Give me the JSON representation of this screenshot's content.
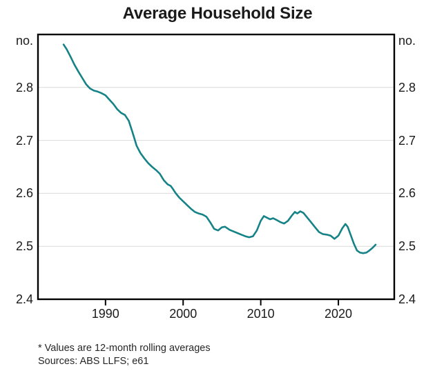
{
  "chart_data": {
    "type": "line",
    "title": "Average Household Size",
    "unit_label": "no.",
    "footnote": "* Values are 12-month rolling averages",
    "sources": "Sources: ABS LLFS; e61",
    "xlim": [
      1981.3,
      2027.2
    ],
    "ylim": [
      2.4,
      2.9
    ],
    "x_ticks": [
      1990,
      2000,
      2010,
      2020
    ],
    "y_ticks": [
      2.4,
      2.5,
      2.6,
      2.7,
      2.8
    ],
    "y_gridlines": [
      2.5,
      2.6,
      2.7,
      2.8
    ],
    "grid_on": true,
    "legend": "none",
    "line_color": "#148286",
    "grid_color": "#d9d9d9",
    "axis_color": "#000000",
    "text_color": "#1a1a1a",
    "series": [
      {
        "name": "Average household size",
        "points": [
          [
            1984.6,
            2.881
          ],
          [
            1985,
            2.872
          ],
          [
            1985.5,
            2.858
          ],
          [
            1986,
            2.843
          ],
          [
            1986.5,
            2.83
          ],
          [
            1987,
            2.818
          ],
          [
            1987.5,
            2.806
          ],
          [
            1988,
            2.798
          ],
          [
            1988.5,
            2.794
          ],
          [
            1989,
            2.792
          ],
          [
            1989.5,
            2.789
          ],
          [
            1990,
            2.785
          ],
          [
            1990.5,
            2.777
          ],
          [
            1991,
            2.769
          ],
          [
            1991.5,
            2.759
          ],
          [
            1992,
            2.752
          ],
          [
            1992.5,
            2.748
          ],
          [
            1993,
            2.737
          ],
          [
            1993.5,
            2.714
          ],
          [
            1994,
            2.69
          ],
          [
            1994.5,
            2.676
          ],
          [
            1995,
            2.666
          ],
          [
            1995.5,
            2.657
          ],
          [
            1996,
            2.65
          ],
          [
            1996.5,
            2.644
          ],
          [
            1997,
            2.637
          ],
          [
            1997.5,
            2.625
          ],
          [
            1998,
            2.617
          ],
          [
            1998.4,
            2.614
          ],
          [
            1998.7,
            2.608
          ],
          [
            1999,
            2.601
          ],
          [
            1999.5,
            2.592
          ],
          [
            2000,
            2.585
          ],
          [
            2000.5,
            2.578
          ],
          [
            2001,
            2.571
          ],
          [
            2001.5,
            2.565
          ],
          [
            2002,
            2.562
          ],
          [
            2002.5,
            2.56
          ],
          [
            2003,
            2.556
          ],
          [
            2003.5,
            2.545
          ],
          [
            2004,
            2.533
          ],
          [
            2004.5,
            2.53
          ],
          [
            2005,
            2.536
          ],
          [
            2005.4,
            2.537
          ],
          [
            2006,
            2.531
          ],
          [
            2006.5,
            2.528
          ],
          [
            2007,
            2.525
          ],
          [
            2007.5,
            2.522
          ],
          [
            2008,
            2.519
          ],
          [
            2008.5,
            2.517
          ],
          [
            2009,
            2.519
          ],
          [
            2009.5,
            2.53
          ],
          [
            2010,
            2.548
          ],
          [
            2010.4,
            2.557
          ],
          [
            2010.8,
            2.554
          ],
          [
            2011.2,
            2.551
          ],
          [
            2011.6,
            2.553
          ],
          [
            2012,
            2.55
          ],
          [
            2012.5,
            2.546
          ],
          [
            2013,
            2.543
          ],
          [
            2013.5,
            2.548
          ],
          [
            2014,
            2.558
          ],
          [
            2014.4,
            2.565
          ],
          [
            2014.7,
            2.562
          ],
          [
            2015.1,
            2.566
          ],
          [
            2015.5,
            2.563
          ],
          [
            2016,
            2.554
          ],
          [
            2016.5,
            2.545
          ],
          [
            2017,
            2.536
          ],
          [
            2017.5,
            2.527
          ],
          [
            2018,
            2.523
          ],
          [
            2018.5,
            2.522
          ],
          [
            2019,
            2.52
          ],
          [
            2019.5,
            2.514
          ],
          [
            2020,
            2.52
          ],
          [
            2020.5,
            2.534
          ],
          [
            2020.9,
            2.542
          ],
          [
            2021.2,
            2.537
          ],
          [
            2021.6,
            2.521
          ],
          [
            2022,
            2.505
          ],
          [
            2022.4,
            2.492
          ],
          [
            2022.8,
            2.488
          ],
          [
            2023.2,
            2.487
          ],
          [
            2023.6,
            2.488
          ],
          [
            2024,
            2.492
          ],
          [
            2024.4,
            2.497
          ],
          [
            2024.8,
            2.503
          ]
        ]
      }
    ]
  }
}
